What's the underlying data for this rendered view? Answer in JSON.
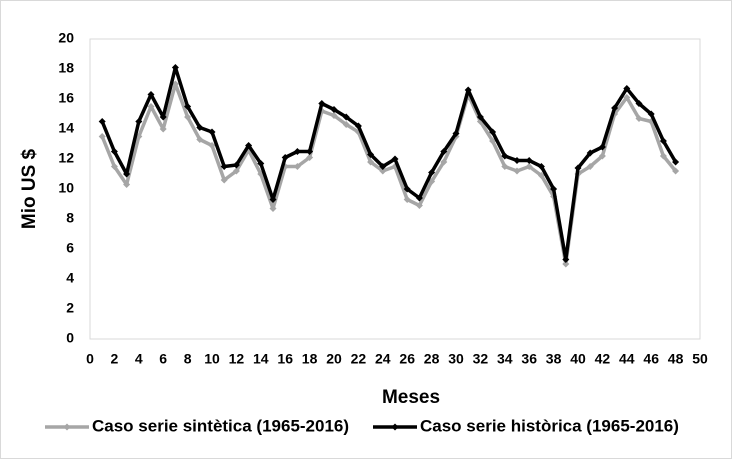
{
  "chart_data": {
    "type": "line",
    "x_label": "Meses",
    "y_label": "Mio US $",
    "x": [
      1,
      2,
      3,
      4,
      5,
      6,
      7,
      8,
      9,
      10,
      11,
      12,
      13,
      14,
      15,
      16,
      17,
      18,
      19,
      20,
      21,
      22,
      23,
      24,
      25,
      26,
      27,
      28,
      29,
      30,
      31,
      32,
      33,
      34,
      35,
      36,
      37,
      38,
      39,
      40,
      41,
      42,
      43,
      44,
      45,
      46,
      47,
      48
    ],
    "series": [
      {
        "name": "Caso serie sintètica (1965-2016)",
        "color": "#a6a6a6",
        "values": [
          13.5,
          11.5,
          10.3,
          13.5,
          15.5,
          14.0,
          17.0,
          14.8,
          13.3,
          12.9,
          10.6,
          11.2,
          12.6,
          11.0,
          8.7,
          11.5,
          11.5,
          12.1,
          15.2,
          14.9,
          14.3,
          13.8,
          11.8,
          11.2,
          11.5,
          9.3,
          8.9,
          10.5,
          11.8,
          13.5,
          16.3,
          14.5,
          13.2,
          11.5,
          11.2,
          11.5,
          10.9,
          9.5,
          5.0,
          11.0,
          11.5,
          12.2,
          15.0,
          16.1,
          14.7,
          14.5,
          12.2,
          11.2
        ]
      },
      {
        "name": "Caso serie històrica (1965-2016)",
        "color": "#000000",
        "values": [
          14.5,
          12.5,
          11.0,
          14.5,
          16.3,
          14.8,
          18.1,
          15.5,
          14.1,
          13.8,
          11.5,
          11.6,
          12.9,
          11.7,
          9.3,
          12.1,
          12.5,
          12.5,
          15.7,
          15.3,
          14.8,
          14.2,
          12.3,
          11.5,
          12.0,
          10.0,
          9.4,
          11.1,
          12.5,
          13.7,
          16.6,
          14.8,
          13.8,
          12.2,
          11.9,
          11.9,
          11.5,
          10.0,
          5.3,
          11.4,
          12.4,
          12.8,
          15.4,
          16.7,
          15.7,
          15.0,
          13.2,
          11.8
        ]
      }
    ],
    "xlim": [
      0,
      50
    ],
    "xticks": [
      0,
      2,
      4,
      6,
      8,
      10,
      12,
      14,
      16,
      18,
      20,
      22,
      24,
      26,
      28,
      30,
      32,
      34,
      36,
      38,
      40,
      42,
      44,
      46,
      48,
      50
    ],
    "ylim": [
      0,
      20
    ],
    "yticks": [
      0,
      2,
      4,
      6,
      8,
      10,
      12,
      14,
      16,
      18,
      20
    ],
    "grid": false
  }
}
